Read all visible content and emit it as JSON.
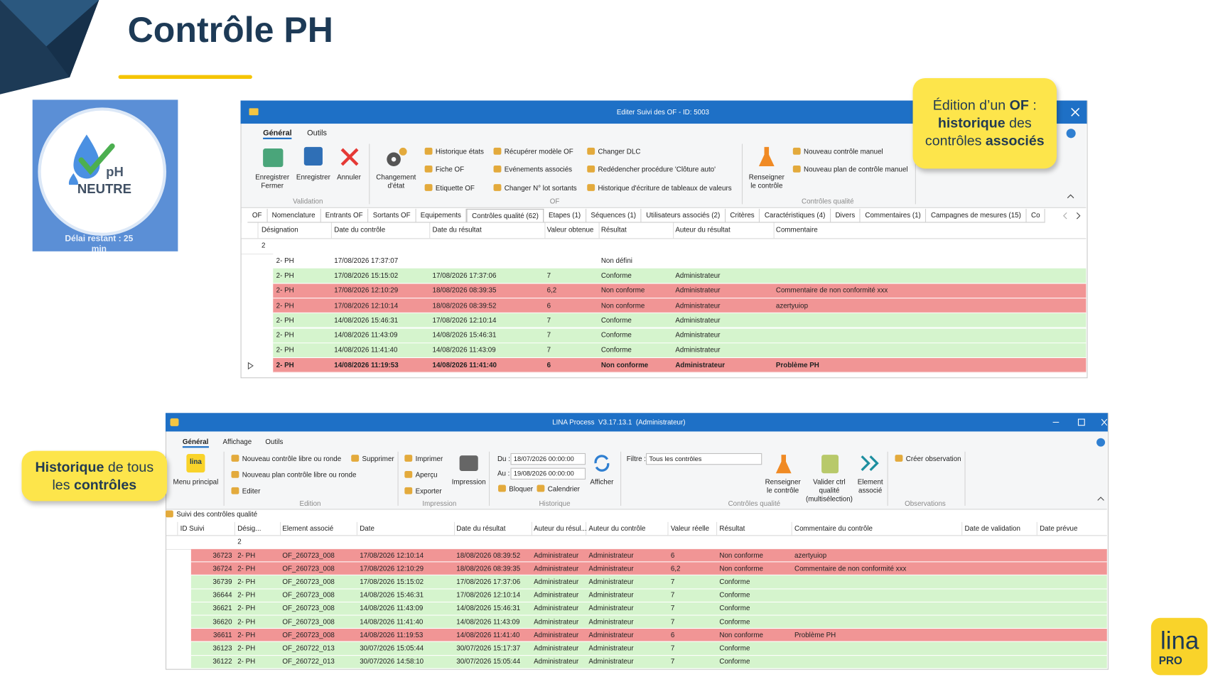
{
  "title": "Contrôle PH",
  "badge": {
    "ph": "pH",
    "label": "NEUTRE",
    "timer": "Délai restant : 25 min"
  },
  "callout_of": [
    {
      "text": "Édition d’un ",
      "bold": false
    },
    {
      "text": "OF",
      "bold": true
    },
    {
      "text": " : ",
      "bold": false
    },
    {
      "text": "historique",
      "bold": true
    },
    {
      "text": " des contrôles ",
      "bold": false
    },
    {
      "text": "associés",
      "bold": true
    }
  ],
  "callout_all": [
    {
      "text": "Historique",
      "bold": true
    },
    {
      "text": " de tous les ",
      "bold": false
    },
    {
      "text": "contrôles",
      "bold": true
    }
  ],
  "window_of": {
    "title": "Editer Suivi des OF - ID: 5003",
    "menu_tabs": [
      "Général",
      "Outils"
    ],
    "validation": {
      "label": "Validation",
      "buttons": [
        "Enregistrer Fermer",
        "Enregistrer",
        "Annuler"
      ]
    },
    "of": {
      "label": "OF",
      "button": "Changement d'état",
      "items": [
        "Historique états",
        "Fiche OF",
        "Etiquette OF",
        "Récupérer modèle OF",
        "Evénements associés",
        "Changer N° lot sortants",
        "Changer DLC",
        "Redédencher procédure 'Clôture auto'",
        "Historique d'écriture de tableaux de valeurs"
      ]
    },
    "quality": {
      "label": "Contrôles qualité",
      "button": "Renseigner le contrôle",
      "items": [
        "Nouveau contrôle manuel",
        "Nouveau plan de contrôle manuel"
      ]
    },
    "tabs": [
      "OF",
      "Nomenclature",
      "Entrants OF",
      "Sortants OF",
      "Equipements",
      "Contrôles qualité (62)",
      "Etapes (1)",
      "Séquences (1)",
      "Utilisateurs associés (2)",
      "Critères",
      "Caractéristiques (4)",
      "Divers",
      "Commentaires (1)",
      "Campagnes de mesures (15)",
      "Co"
    ],
    "active_tab": 5,
    "table": {
      "columns": [
        "Désignation",
        "Date du contrôle",
        "Date du résultat",
        "Valeur obtenue",
        "Résultat",
        "Auteur du résultat",
        "Commentaire"
      ],
      "group_value": "2",
      "rows": [
        {
          "color": "#ffffff",
          "bold": false,
          "cells": [
            "2- PH",
            "17/08/2026 17:37:07",
            null,
            null,
            "Non défini",
            null,
            null
          ]
        },
        {
          "color": "#d5f4cd",
          "bold": false,
          "cells": [
            "2- PH",
            "17/08/2026 15:15:02",
            "17/08/2026 17:37:06",
            "7",
            "Conforme",
            "Administrateur",
            null
          ]
        },
        {
          "color": "#f19595",
          "bold": false,
          "cells": [
            "2- PH",
            "17/08/2026 12:10:29",
            "18/08/2026 08:39:35",
            "6,2",
            "Non conforme",
            "Administrateur",
            "Commentaire de non conformité xxx"
          ]
        },
        {
          "color": "#f19595",
          "bold": false,
          "cells": [
            "2- PH",
            "17/08/2026 12:10:14",
            "18/08/2026 08:39:52",
            "6",
            "Non conforme",
            "Administrateur",
            "azertyuiop"
          ]
        },
        {
          "color": "#d5f4cd",
          "bold": false,
          "cells": [
            "2- PH",
            "14/08/2026 15:46:31",
            "17/08/2026 12:10:14",
            "7",
            "Conforme",
            "Administrateur",
            null
          ]
        },
        {
          "color": "#d5f4cd",
          "bold": false,
          "cells": [
            "2- PH",
            "14/08/2026 11:43:09",
            "14/08/2026 15:46:31",
            "7",
            "Conforme",
            "Administrateur",
            null
          ]
        },
        {
          "color": "#d5f4cd",
          "bold": false,
          "cells": [
            "2- PH",
            "14/08/2026 11:41:40",
            "14/08/2026 11:43:09",
            "7",
            "Conforme",
            "Administrateur",
            null
          ]
        },
        {
          "color": "#f19595",
          "bold": true,
          "cells": [
            "2- PH",
            "14/08/2026 11:19:53",
            "14/08/2026 11:41:40",
            "6",
            "Non conforme",
            "Administrateur",
            "Problème PH"
          ]
        }
      ]
    }
  },
  "window_lina": {
    "title": "LINA Process  V3.17.13.1  (Administrateur)",
    "menu_tabs": [
      "Général",
      "Affichage",
      "Outils"
    ],
    "main": {
      "icon": "lina",
      "button": "Menu principal"
    },
    "edition": {
      "label": "Edition",
      "items": [
        "Nouveau contrôle libre ou ronde",
        "Nouveau plan contrôle libre ou ronde",
        "Editer",
        "Supprimer"
      ]
    },
    "print": {
      "label": "Impression",
      "items": [
        "Imprimer",
        "Aperçu",
        "Exporter"
      ],
      "button": "Impression"
    },
    "history": {
      "label": "Historique",
      "from_label": "Du :",
      "from": "18/07/2026 00:00:00",
      "to_label": "Au :",
      "to": "19/08/2026 00:00:00",
      "items": [
        "Bloquer",
        "Calendrier"
      ],
      "button": "Afficher"
    },
    "quality": {
      "label": "Contrôles qualité",
      "filter_label": "Filtre :",
      "filter": "Tous les contrôles",
      "buttons": [
        "Renseigner le contrôle",
        "Valider ctrl qualité (multisélection)",
        "Element associé"
      ]
    },
    "observations": {
      "label": "Observations",
      "items": [
        "Créer observation"
      ]
    },
    "section": "Suivi des contrôles qualité",
    "table": {
      "columns": [
        "ID Suivi",
        "Désig...",
        "Element associé",
        "Date",
        "Date du résultat",
        "Auteur du résul...",
        "Auteur du contrôle",
        "Valeur réelle",
        "Résultat",
        "Commentaire du contrôle",
        "Date de validation",
        "Date prévue"
      ],
      "group_value": "2",
      "rows": [
        {
          "color": "#f19595",
          "cells": [
            "36723",
            "2- PH",
            "OF_260723_008",
            "17/08/2026 12:10:14",
            "18/08/2026 08:39:52",
            "Administrateur",
            "Administrateur",
            "6",
            "Non conforme",
            "azertyuiop",
            null,
            null
          ]
        },
        {
          "color": "#f19595",
          "cells": [
            "36724",
            "2- PH",
            "OF_260723_008",
            "17/08/2026 12:10:29",
            "18/08/2026 08:39:35",
            "Administrateur",
            "Administrateur",
            "6,2",
            "Non conforme",
            "Commentaire de non conformité xxx",
            null,
            null
          ]
        },
        {
          "color": "#d5f4cd",
          "cells": [
            "36739",
            "2- PH",
            "OF_260723_008",
            "17/08/2026 15:15:02",
            "17/08/2026 17:37:06",
            "Administrateur",
            "Administrateur",
            "7",
            "Conforme",
            null,
            null,
            null
          ]
        },
        {
          "color": "#d5f4cd",
          "cells": [
            "36644",
            "2- PH",
            "OF_260723_008",
            "14/08/2026 15:46:31",
            "17/08/2026 12:10:14",
            "Administrateur",
            "Administrateur",
            "7",
            "Conforme",
            null,
            null,
            null
          ]
        },
        {
          "color": "#d5f4cd",
          "cells": [
            "36621",
            "2- PH",
            "OF_260723_008",
            "14/08/2026 11:43:09",
            "14/08/2026 15:46:31",
            "Administrateur",
            "Administrateur",
            "7",
            "Conforme",
            null,
            null,
            null
          ]
        },
        {
          "color": "#d5f4cd",
          "cells": [
            "36620",
            "2- PH",
            "OF_260723_008",
            "14/08/2026 11:41:40",
            "14/08/2026 11:43:09",
            "Administrateur",
            "Administrateur",
            "7",
            "Conforme",
            null,
            null,
            null
          ]
        },
        {
          "color": "#f19595",
          "cells": [
            "36611",
            "2- PH",
            "OF_260723_008",
            "14/08/2026 11:19:53",
            "14/08/2026 11:41:40",
            "Administrateur",
            "Administrateur",
            "6",
            "Non conforme",
            "Problème PH",
            null,
            null
          ]
        },
        {
          "color": "#d5f4cd",
          "cells": [
            "36123",
            "2- PH",
            "OF_260722_013",
            "30/07/2026 15:05:44",
            "30/07/2026 15:17:37",
            "Administrateur",
            "Administrateur",
            "7",
            "Conforme",
            null,
            null,
            null
          ]
        },
        {
          "color": "#d5f4cd",
          "cells": [
            "36122",
            "2- PH",
            "OF_260722_013",
            "30/07/2026 14:58:10",
            "30/07/2026 15:05:44",
            "Administrateur",
            "Administrateur",
            "7",
            "Conforme",
            null,
            null,
            null
          ]
        }
      ]
    }
  },
  "logo": {
    "name": "lina",
    "edition": "PRO"
  }
}
